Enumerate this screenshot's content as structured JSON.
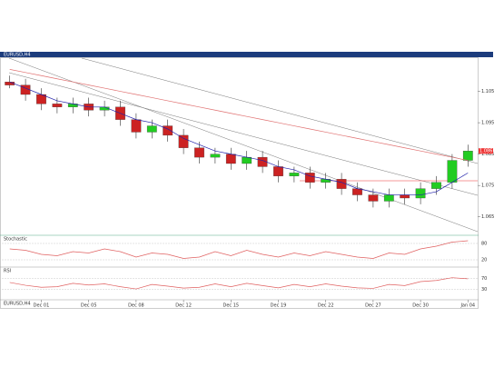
{
  "window": {
    "title": "EURUSD,H4",
    "status": "EURUSD,H4"
  },
  "chart_data": {
    "type": "candlestick",
    "categories": [
      null,
      null,
      "Dec 01",
      null,
      null,
      "Dec 05",
      null,
      null,
      "Dec 08",
      null,
      null,
      "Dec 12",
      null,
      null,
      "Dec 15",
      null,
      null,
      "Dec 19",
      null,
      null,
      "Dec 22",
      null,
      null,
      "Dec 27",
      null,
      null,
      "Dec 30",
      null,
      null,
      "Jan 04"
    ],
    "open": [
      1.108,
      1.107,
      1.104,
      1.101,
      1.1,
      1.101,
      1.099,
      1.1,
      1.096,
      1.092,
      1.094,
      1.091,
      1.087,
      1.084,
      1.085,
      1.082,
      1.084,
      1.081,
      1.078,
      1.079,
      1.076,
      1.077,
      1.074,
      1.072,
      1.07,
      1.072,
      1.071,
      1.074,
      1.076,
      1.083
    ],
    "high": [
      1.11,
      1.109,
      1.106,
      1.103,
      1.103,
      1.103,
      1.102,
      1.102,
      1.098,
      1.096,
      1.096,
      1.093,
      1.089,
      1.087,
      1.087,
      1.086,
      1.086,
      1.083,
      1.081,
      1.081,
      1.079,
      1.079,
      1.076,
      1.074,
      1.074,
      1.074,
      1.076,
      1.078,
      1.085,
      1.088
    ],
    "low": [
      1.106,
      1.102,
      1.099,
      1.098,
      1.098,
      1.097,
      1.097,
      1.094,
      1.09,
      1.09,
      1.089,
      1.085,
      1.082,
      1.082,
      1.08,
      1.08,
      1.079,
      1.076,
      1.076,
      1.074,
      1.074,
      1.072,
      1.07,
      1.068,
      1.068,
      1.069,
      1.069,
      1.072,
      1.074,
      1.081
    ],
    "close": [
      1.107,
      1.104,
      1.101,
      1.1,
      1.101,
      1.099,
      1.1,
      1.096,
      1.092,
      1.094,
      1.091,
      1.087,
      1.084,
      1.085,
      1.082,
      1.084,
      1.081,
      1.078,
      1.079,
      1.076,
      1.077,
      1.074,
      1.072,
      1.07,
      1.072,
      1.071,
      1.074,
      1.076,
      1.083,
      1.086
    ],
    "up_color": "#22cc22",
    "down_color": "#cc2222",
    "series": [
      {
        "color": "#2222aa",
        "values": [
          1.108,
          1.106,
          1.104,
          1.102,
          1.101,
          1.1,
          1.1,
          1.098,
          1.096,
          1.095,
          1.093,
          1.09,
          1.088,
          1.086,
          1.085,
          1.084,
          1.083,
          1.081,
          1.08,
          1.078,
          1.077,
          1.076,
          1.074,
          1.073,
          1.072,
          1.072,
          1.072,
          1.073,
          1.076,
          1.079
        ]
      },
      {
        "color": "#e07070",
        "values": [
          1.112,
          1.111,
          1.11,
          1.109,
          1.108,
          1.107,
          1.106,
          1.105,
          1.104,
          1.103,
          1.102,
          1.101,
          1.1,
          1.099,
          1.098,
          1.097,
          1.096,
          1.095,
          1.094,
          1.093,
          1.092,
          1.091,
          1.09,
          1.089,
          1.088,
          1.087,
          1.086,
          1.085,
          1.084,
          1.083
        ]
      }
    ],
    "ylim": [
      1.06,
      1.115
    ],
    "yticks": [
      1.065,
      1.075,
      1.085,
      1.095,
      1.105
    ],
    "panels": [
      {
        "title": "Stochastic",
        "color": "#e06060",
        "values": [
          60,
          55,
          40,
          35,
          50,
          45,
          60,
          50,
          30,
          45,
          40,
          25,
          30,
          50,
          35,
          55,
          40,
          30,
          45,
          35,
          50,
          40,
          30,
          25,
          45,
          40,
          60,
          70,
          85,
          90
        ],
        "ylim": [
          0,
          100
        ],
        "yticks": [
          20,
          80
        ]
      },
      {
        "title": "RSI",
        "color": "#e06060",
        "values": [
          55,
          45,
          38,
          40,
          52,
          46,
          50,
          40,
          32,
          48,
          42,
          35,
          38,
          50,
          40,
          52,
          44,
          36,
          48,
          40,
          50,
          42,
          36,
          34,
          48,
          44,
          58,
          62,
          72,
          68
        ],
        "ylim": [
          0,
          100
        ],
        "yticks": [
          30,
          70
        ]
      }
    ]
  }
}
